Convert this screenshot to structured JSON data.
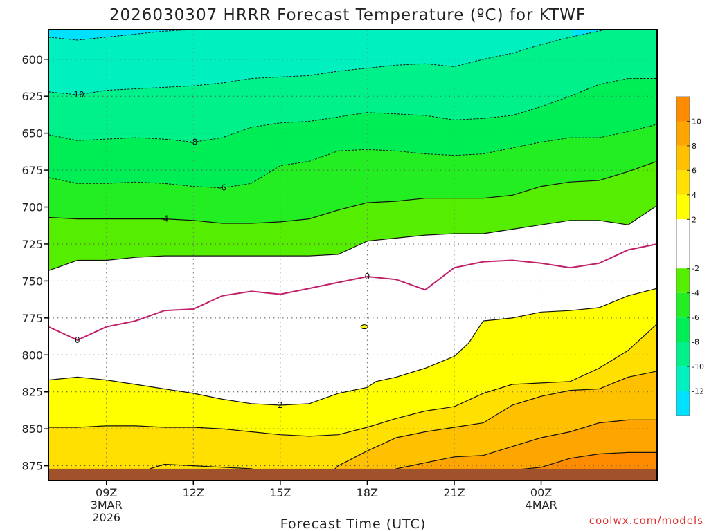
{
  "chart_data": {
    "type": "heatmap",
    "title": "2026030307 HRRR Forecast Temperature (ºC) for KTWF",
    "xlabel": "Forecast Time (UTC)",
    "ylabel": "",
    "credit": "coolwx.com/models",
    "x_hours": [
      7,
      28
    ],
    "y_range_hpa": [
      580,
      885
    ],
    "y_ticks": [
      600,
      625,
      650,
      675,
      700,
      725,
      750,
      775,
      800,
      825,
      850,
      875
    ],
    "x_ticks": [
      {
        "hour": 9,
        "label": "09Z",
        "sub1": "3MAR",
        "sub2": "2026"
      },
      {
        "hour": 12,
        "label": "12Z",
        "sub1": "",
        "sub2": ""
      },
      {
        "hour": 15,
        "label": "15Z",
        "sub1": "",
        "sub2": ""
      },
      {
        "hour": 18,
        "label": "18Z",
        "sub1": "",
        "sub2": ""
      },
      {
        "hour": 21,
        "label": "21Z",
        "sub1": "",
        "sub2": ""
      },
      {
        "hour": 24,
        "label": "00Z",
        "sub1": "4MAR",
        "sub2": ""
      }
    ],
    "colorbar": {
      "ticks": [
        10,
        8,
        6,
        4,
        2,
        -2,
        -4,
        -6,
        -8,
        -10,
        -12
      ],
      "bands": [
        {
          "min": 10,
          "max": 12,
          "color": "#ff8c00"
        },
        {
          "min": 8,
          "max": 10,
          "color": "#ffa500"
        },
        {
          "min": 6,
          "max": 8,
          "color": "#ffc000"
        },
        {
          "min": 4,
          "max": 6,
          "color": "#ffe000"
        },
        {
          "min": 2,
          "max": 4,
          "color": "#ffff00"
        },
        {
          "min": -2,
          "max": 2,
          "color": "#ffffff"
        },
        {
          "min": -4,
          "max": -2,
          "color": "#55ee00"
        },
        {
          "min": -6,
          "max": -4,
          "color": "#22ee22"
        },
        {
          "min": -8,
          "max": -6,
          "color": "#00ee55"
        },
        {
          "min": -10,
          "max": -8,
          "color": "#00f08a"
        },
        {
          "min": -12,
          "max": -10,
          "color": "#00f0c0"
        },
        {
          "min": -14,
          "max": -12,
          "color": "#00e0ff"
        }
      ]
    },
    "ground_color": "#a0522d",
    "ground_top_hpa": 877,
    "contours": [
      {
        "level": -12,
        "style": "dashed",
        "hours": [
          7,
          8,
          9,
          10,
          11,
          12,
          13,
          14,
          15,
          16,
          17,
          18,
          19,
          20,
          21,
          22,
          23,
          24,
          25
        ],
        "hpa": [
          585,
          587,
          585,
          583,
          581,
          580,
          578,
          577,
          576,
          575,
          574,
          573,
          573,
          573,
          573,
          573,
          573,
          573,
          573
        ]
      },
      {
        "level": -10,
        "style": "dashed",
        "hours": [
          7,
          8,
          9,
          10,
          11,
          12,
          13,
          14,
          15,
          16,
          17,
          18,
          19,
          20,
          21,
          22,
          23,
          24,
          25,
          26,
          27,
          28
        ],
        "hpa": [
          622,
          624,
          621,
          620,
          619,
          618,
          616,
          613,
          612,
          611,
          608,
          606,
          604,
          603,
          605,
          600,
          596,
          590,
          585,
          581,
          576,
          572
        ]
      },
      {
        "level": -8,
        "style": "dashed",
        "hours": [
          7,
          8,
          9,
          10,
          11,
          12,
          13,
          14,
          15,
          16,
          17,
          18,
          19,
          20,
          21,
          22,
          23,
          24,
          25,
          26,
          27,
          28
        ],
        "hpa": [
          651,
          655,
          654,
          653,
          654,
          656,
          653,
          646,
          643,
          642,
          639,
          636,
          637,
          638,
          641,
          640,
          638,
          632,
          625,
          617,
          613,
          613
        ]
      },
      {
        "level": -6,
        "style": "dashed",
        "hours": [
          7,
          8,
          9,
          10,
          11,
          12,
          13,
          14,
          15,
          16,
          17,
          18,
          19,
          20,
          21,
          22,
          23,
          24,
          25,
          26,
          27,
          28
        ],
        "hpa": [
          680,
          684,
          684,
          683,
          684,
          686,
          687,
          684,
          672,
          669,
          662,
          661,
          662,
          664,
          665,
          664,
          660,
          656,
          653,
          653,
          649,
          644
        ]
      },
      {
        "level": -4,
        "style": "solid",
        "hours": [
          7,
          8,
          9,
          10,
          11,
          12,
          13,
          14,
          15,
          16,
          17,
          18,
          19,
          20,
          21,
          22,
          23,
          24,
          25,
          26,
          27,
          28
        ],
        "hpa": [
          707,
          708,
          708,
          708,
          708,
          709,
          711,
          711,
          710,
          708,
          702,
          697,
          696,
          694,
          694,
          694,
          692,
          686,
          683,
          682,
          676,
          669
        ]
      },
      {
        "level": -2,
        "style": "solid",
        "hours": [
          7,
          8,
          9,
          10,
          11,
          12,
          13,
          14,
          15,
          16,
          17,
          18,
          19,
          20,
          21,
          22,
          23,
          24,
          25,
          26,
          27,
          28
        ],
        "hpa": [
          743,
          736,
          736,
          734,
          733,
          733,
          733,
          733,
          733,
          733,
          732,
          723,
          721,
          719,
          718,
          718,
          715,
          712,
          709,
          709,
          712,
          699
        ]
      },
      {
        "level": 0,
        "style": "magenta",
        "hours": [
          7,
          8,
          9,
          10,
          11,
          12,
          13,
          14,
          15,
          16,
          17,
          18,
          19,
          20,
          21,
          22,
          23,
          24,
          25,
          26,
          27,
          28
        ],
        "hpa": [
          781,
          790,
          781,
          777,
          770,
          769,
          760,
          757,
          759,
          755,
          751,
          747,
          749,
          756,
          741,
          737,
          736,
          738,
          741,
          738,
          729,
          725
        ]
      },
      {
        "level": 2,
        "style": "solid",
        "closed": true,
        "hours": [
          7,
          8,
          9,
          10,
          11,
          12,
          13,
          14,
          15,
          16,
          17,
          18,
          18.3,
          19,
          20,
          21,
          21.5,
          22,
          23,
          24,
          25,
          26,
          27,
          28,
          28,
          7
        ],
        "hpa": [
          817,
          815,
          817,
          820,
          823,
          826,
          830,
          833,
          834,
          833,
          826,
          822,
          818,
          815,
          809,
          801,
          792,
          777,
          775,
          771,
          770,
          768,
          760,
          755,
          884,
          884
        ]
      },
      {
        "level": 4,
        "style": "solid",
        "hours": [
          7,
          8,
          9,
          10,
          11,
          12,
          13,
          14,
          15,
          16,
          17,
          18,
          19,
          20,
          21,
          22,
          23,
          24,
          25,
          26,
          27,
          28
        ],
        "hpa": [
          849,
          849,
          848,
          848,
          849,
          849,
          850,
          852,
          854,
          855,
          854,
          849,
          843,
          838,
          835,
          826,
          820,
          819,
          818,
          809,
          797,
          779
        ]
      },
      {
        "level": 6,
        "style": "solid",
        "hours": [
          16.5,
          17,
          18,
          19,
          20,
          21,
          22,
          23,
          24,
          25,
          26,
          27,
          28
        ],
        "hpa": [
          884,
          875,
          865,
          856,
          852,
          849,
          846,
          834,
          828,
          824,
          823,
          815,
          811
        ]
      },
      {
        "level": 8,
        "style": "solid",
        "hours": [
          16,
          17,
          18,
          19,
          20,
          21,
          22,
          23,
          24,
          25,
          26,
          27,
          28
        ],
        "hpa": [
          884,
          884,
          883,
          877,
          873,
          869,
          868,
          862,
          856,
          852,
          846,
          844,
          844
        ]
      },
      {
        "level": 10,
        "style": "solid",
        "hours": [
          22.5,
          23,
          24,
          25,
          26,
          27,
          28
        ],
        "hpa": [
          884,
          878,
          876,
          870,
          867,
          866,
          866
        ]
      },
      {
        "level": 4,
        "style": "solid",
        "hours": [
          10.5,
          11,
          12,
          13,
          14,
          14.5
        ],
        "hpa": [
          877,
          874,
          875,
          876,
          877,
          880
        ]
      }
    ],
    "contour_labels": [
      {
        "text": "-10",
        "hour": 8,
        "hpa": 624
      },
      {
        "text": "-8",
        "hour": 12,
        "hpa": 656
      },
      {
        "text": "-6",
        "hour": 13,
        "hpa": 687
      },
      {
        "text": "-4",
        "hour": 11,
        "hpa": 708
      },
      {
        "text": "0",
        "hour": 8,
        "hpa": 790
      },
      {
        "text": "0",
        "hour": 18,
        "hpa": 747
      },
      {
        "text": "2",
        "hour": 15,
        "hpa": 834
      }
    ],
    "blob": {
      "hour": 17.9,
      "hpa": 781
    }
  }
}
